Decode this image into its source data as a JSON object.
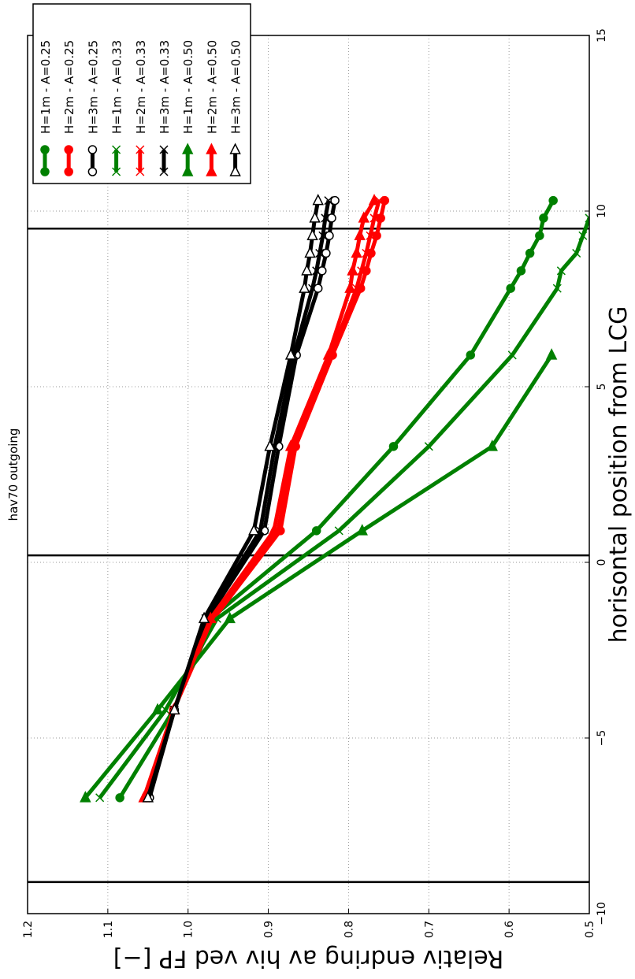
{
  "chart_data": {
    "type": "line",
    "title": "hav70 outgoing",
    "x_label": "horisontal position from LCG",
    "y_label": "Relativ endring av hiv ved FP [−]",
    "x": [
      -6.7,
      -4.2,
      -1.6,
      0.9,
      3.3,
      5.9,
      7.8,
      8.3,
      8.8,
      9.3,
      9.8,
      10.3
    ],
    "xlim": [
      -10,
      15
    ],
    "xticks": [
      {
        "value": -10,
        "label": "−10"
      },
      {
        "value": -5,
        "label": "−5"
      },
      0,
      5,
      10,
      15
    ],
    "ylim": [
      0.5,
      1.2
    ],
    "yticks": [
      0.5,
      0.6,
      0.7,
      0.8,
      0.9,
      {
        "value": 1.0,
        "label": "1.0"
      },
      1.1,
      1.2
    ],
    "grid": true,
    "vlines": [
      -9.1,
      0.2,
      9.5
    ],
    "series": [
      {
        "name": "H=1m - A=0.25",
        "color": "#008000",
        "marker": "o",
        "marker_fill": "#008000",
        "values": [
          1.085,
          1.018,
          0.972,
          0.84,
          0.744,
          0.648,
          0.598,
          0.585,
          0.574,
          0.562,
          0.557,
          0.545
        ]
      },
      {
        "name": "H=2m - A=0.25",
        "color": "#ff0000",
        "marker": "o",
        "marker_fill": "#ff0000",
        "values": [
          1.052,
          1.018,
          0.968,
          0.885,
          0.866,
          0.82,
          0.785,
          0.778,
          0.772,
          0.765,
          0.76,
          0.755
        ]
      },
      {
        "name": "H=3m - A=0.25",
        "color": "#000000",
        "marker": "o",
        "marker_fill": "#ffffff",
        "values": [
          1.048,
          1.017,
          0.976,
          0.905,
          0.887,
          0.865,
          0.838,
          0.833,
          0.828,
          0.824,
          0.821,
          0.817
        ]
      },
      {
        "name": "H=1m - A=0.33",
        "color": "#008000",
        "marker": "x",
        "marker_fill": "#008000",
        "values": [
          1.11,
          1.028,
          0.964,
          0.812,
          0.7,
          0.596,
          0.54,
          0.535,
          0.516,
          0.508,
          0.5,
          null
        ]
      },
      {
        "name": "H=2m - A=0.33",
        "color": "#ff0000",
        "marker": "x",
        "marker_fill": "#ff0000",
        "values": [
          1.052,
          1.018,
          0.97,
          0.888,
          0.868,
          0.822,
          0.79,
          0.784,
          0.778,
          0.773,
          0.768,
          0.762
        ]
      },
      {
        "name": "H=3m - A=0.33",
        "color": "#000000",
        "marker": "x",
        "marker_fill": "#000000",
        "values": [
          1.049,
          1.017,
          0.978,
          0.91,
          0.892,
          0.868,
          0.845,
          0.84,
          0.836,
          0.832,
          0.829,
          0.825
        ]
      },
      {
        "name": "H=1m - A=0.50",
        "color": "#008000",
        "marker": "^",
        "marker_fill": "#008000",
        "values": [
          1.128,
          1.038,
          0.948,
          0.783,
          0.621,
          0.547,
          null,
          null,
          null,
          null,
          null,
          null
        ]
      },
      {
        "name": "H=2m - A=0.50",
        "color": "#ff0000",
        "marker": "^",
        "marker_fill": "#ff0000",
        "values": [
          1.055,
          1.018,
          0.972,
          0.893,
          0.872,
          0.825,
          0.798,
          0.795,
          0.79,
          0.786,
          0.781,
          0.768
        ]
      },
      {
        "name": "H=3m - A=0.50",
        "color": "#000000",
        "marker": "^",
        "marker_fill": "#ffffff",
        "values": [
          1.05,
          1.017,
          0.98,
          0.918,
          0.898,
          0.872,
          0.855,
          0.852,
          0.848,
          0.845,
          0.842,
          0.838
        ]
      }
    ]
  }
}
